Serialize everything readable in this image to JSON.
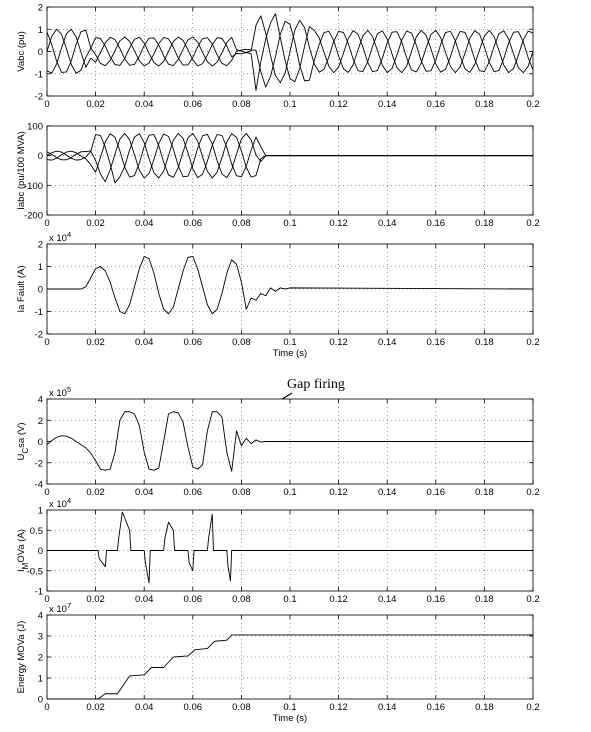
{
  "chart_data": [
    {
      "type": "line",
      "ylabel": "Vabc (pu)",
      "xlim": [
        0,
        0.2
      ],
      "xticks": [
        0,
        0.02,
        0.04,
        0.06,
        0.08,
        0.1,
        0.12,
        0.14,
        0.16,
        0.18,
        0.2
      ],
      "ylim": [
        -2,
        2
      ],
      "yticks": [
        -2,
        -1,
        0,
        1,
        2
      ],
      "grid": true,
      "x": [
        0,
        0.002,
        0.004,
        0.006,
        0.008,
        0.01,
        0.012,
        0.014,
        0.016,
        0.018,
        0.02,
        0.022,
        0.024,
        0.026,
        0.028,
        0.03,
        0.032,
        0.034,
        0.036,
        0.038,
        0.04,
        0.042,
        0.044,
        0.046,
        0.048,
        0.05,
        0.052,
        0.054,
        0.056,
        0.058,
        0.06,
        0.062,
        0.064,
        0.066,
        0.068,
        0.07,
        0.072,
        0.074,
        0.076,
        0.078,
        0.08,
        0.082,
        0.084,
        0.086,
        0.088,
        0.09,
        0.092,
        0.094,
        0.096,
        0.098,
        0.1,
        0.102,
        0.104,
        0.106,
        0.108,
        0.11,
        0.112,
        0.114,
        0.116,
        0.118,
        0.12,
        0.122,
        0.124,
        0.126,
        0.128,
        0.13,
        0.132,
        0.134,
        0.136,
        0.138,
        0.14,
        0.142,
        0.144,
        0.146,
        0.148,
        0.15,
        0.152,
        0.154,
        0.156,
        0.158,
        0.16,
        0.162,
        0.164,
        0.166,
        0.168,
        0.17,
        0.172,
        0.174,
        0.176,
        0.178,
        0.18,
        0.182,
        0.184,
        0.186,
        0.188,
        0.19,
        0.192,
        0.194,
        0.196,
        0.198,
        0.2
      ],
      "series": [
        {
          "color": "#000000",
          "values": [
            0,
            0.69,
            1.0,
            0.77,
            0.13,
            -0.59,
            -0.98,
            -0.84,
            -0.25,
            0.14,
            0.62,
            0.59,
            0.24,
            -0.24,
            -0.59,
            -0.62,
            -0.31,
            0.16,
            0.55,
            0.64,
            0.38,
            -0.08,
            -0.5,
            -0.65,
            -0.45,
            0,
            0.45,
            0.65,
            0.5,
            0.08,
            -0.38,
            -0.64,
            -0.55,
            -0.16,
            0.31,
            0.62,
            0.59,
            0.24,
            -0.24,
            -0.09,
            -0.1,
            -0.05,
            0.03,
            1.18,
            1.6,
            0.83,
            -0.18,
            -1.08,
            -1.4,
            -0.97,
            0,
            0.97,
            1.4,
            1.08,
            0.18,
            -0.56,
            -0.93,
            -0.8,
            -0.24,
            0.46,
            0.9,
            0.86,
            0.35,
            -0.35,
            -0.86,
            -0.9,
            -0.46,
            0.24,
            0.8,
            0.93,
            0.56,
            -0.12,
            -0.73,
            -0.95,
            -0.66,
            0,
            0.66,
            0.95,
            0.73,
            0.12,
            -0.56,
            -0.93,
            -0.8,
            -0.24,
            0.46,
            0.9,
            0.86,
            0.35,
            -0.35,
            -0.86,
            -0.9,
            -0.46,
            0.24,
            0.8,
            0.93,
            0.56,
            -0.12,
            -0.73,
            -0.95,
            -0.66,
            0
          ]
        },
        {
          "color": "#000000",
          "values": [
            -0.87,
            -0.97,
            -0.55,
            0.17,
            0.8,
            1.0,
            0.65,
            -0.04,
            -0.71,
            -0.3,
            -0.48,
            -0.05,
            0.4,
            0.64,
            0.53,
            0.14,
            -0.34,
            -0.62,
            -0.58,
            -0.21,
            0.27,
            0.6,
            0.61,
            0.29,
            -0.19,
            -0.57,
            -0.63,
            -0.36,
            0.11,
            0.52,
            0.65,
            0.42,
            -0.03,
            -0.46,
            -0.65,
            -0.48,
            -0.05,
            0.4,
            0.64,
            0.08,
            0.02,
            -0.05,
            -0.1,
            -1.75,
            -0.46,
            0.57,
            1.29,
            1.7,
            0.63,
            -0.41,
            -1.22,
            -1.36,
            -0.77,
            0.24,
            1.12,
            0.95,
            0.62,
            -0.04,
            -0.67,
            -0.95,
            -0.7,
            -0.08,
            0.59,
            0.94,
            0.78,
            0.2,
            -0.49,
            -0.91,
            -0.85,
            -0.31,
            0.39,
            0.87,
            0.89,
            0.43,
            -0.28,
            -0.83,
            -0.92,
            -0.52,
            0.16,
            0.76,
            0.95,
            0.62,
            -0.04,
            -0.67,
            -0.95,
            -0.7,
            -0.08,
            0.59,
            0.94,
            0.78,
            0.2,
            -0.49,
            -0.91,
            -0.85,
            -0.31,
            0.39,
            0.87,
            0.89,
            0.43,
            -0.28,
            -0.83
          ]
        },
        {
          "color": "#000000",
          "values": [
            0.87,
            0.29,
            -0.45,
            -0.94,
            -0.92,
            -0.41,
            0.33,
            0.89,
            0.96,
            0.16,
            -0.14,
            -0.53,
            -0.64,
            -0.4,
            0.05,
            0.48,
            0.65,
            0.46,
            0.03,
            -0.42,
            -0.65,
            -0.52,
            -0.11,
            0.36,
            0.63,
            0.57,
            0.19,
            -0.29,
            -0.61,
            -0.6,
            -0.27,
            0.21,
            0.58,
            0.62,
            0.34,
            -0.14,
            -0.53,
            -0.64,
            -0.4,
            0.01,
            0.07,
            0.1,
            0.07,
            0.06,
            -0.91,
            -1.6,
            -1.12,
            -0.24,
            0.77,
            1.36,
            1.22,
            0.41,
            -0.63,
            -1.32,
            -1.29,
            -0.39,
            0.31,
            0.85,
            0.91,
            0.49,
            -0.2,
            -0.78,
            -0.94,
            -0.59,
            0.08,
            0.7,
            0.95,
            0.67,
            0.04,
            -0.62,
            -0.95,
            -0.76,
            -0.16,
            0.52,
            0.92,
            0.83,
            0.28,
            -0.43,
            -0.89,
            -0.87,
            -0.39,
            0.31,
            0.85,
            0.91,
            0.49,
            -0.2,
            -0.78,
            -0.94,
            -0.59,
            0.08,
            0.7,
            0.95,
            0.67,
            0.04,
            -0.62,
            -0.95,
            -0.76,
            -0.16,
            0.52,
            0.92,
            0.83
          ]
        }
      ]
    },
    {
      "type": "line",
      "ylabel": "Iabc (pu/100 MVA)",
      "xlim": [
        0,
        0.2
      ],
      "xticks": [
        0,
        0.02,
        0.04,
        0.06,
        0.08,
        0.1,
        0.12,
        0.14,
        0.16,
        0.18,
        0.2
      ],
      "ylim": [
        -200,
        100
      ],
      "yticks": [
        -200,
        -100,
        0,
        100
      ],
      "grid": true,
      "x": [
        0,
        0.002,
        0.004,
        0.006,
        0.008,
        0.01,
        0.012,
        0.014,
        0.016,
        0.018,
        0.02,
        0.022,
        0.024,
        0.026,
        0.028,
        0.03,
        0.032,
        0.034,
        0.036,
        0.038,
        0.04,
        0.042,
        0.044,
        0.046,
        0.048,
        0.05,
        0.052,
        0.054,
        0.056,
        0.058,
        0.06,
        0.062,
        0.064,
        0.066,
        0.068,
        0.07,
        0.072,
        0.074,
        0.076,
        0.078,
        0.08,
        0.082,
        0.084,
        0.086,
        0.088,
        0.09,
        0.2
      ],
      "series": [
        {
          "color": "#000000",
          "values": [
            0,
            10,
            15,
            12,
            2,
            -9,
            -15,
            -13,
            -4,
            14,
            71,
            68,
            28,
            -28,
            -92,
            -71,
            -36,
            19,
            63,
            74,
            44,
            -10,
            -58,
            -75,
            -52,
            0,
            52,
            75,
            58,
            10,
            -44,
            -74,
            -63,
            -19,
            36,
            71,
            68,
            28,
            -28,
            -68,
            -71,
            -36,
            19,
            63,
            30,
            0,
            0
          ]
        },
        {
          "color": "#000000",
          "values": [
            -13,
            -15,
            -8,
            3,
            12,
            15,
            10,
            -1,
            -11,
            -30,
            -56,
            -6,
            47,
            74,
            62,
            16,
            -39,
            -72,
            -67,
            -25,
            31,
            69,
            71,
            34,
            -22,
            -65,
            -73,
            -41,
            13,
            60,
            75,
            49,
            -3,
            -53,
            -75,
            -56,
            -6,
            47,
            74,
            62,
            16,
            -39,
            -72,
            -67,
            -10,
            0,
            0
          ]
        },
        {
          "color": "#000000",
          "values": [
            13,
            4,
            -7,
            -14,
            -14,
            -6,
            5,
            13,
            14,
            16,
            -16,
            -62,
            -88,
            -47,
            6,
            56,
            75,
            53,
            3,
            -49,
            -75,
            -60,
            -13,
            41,
            73,
            65,
            22,
            -34,
            -71,
            -69,
            -31,
            25,
            67,
            72,
            39,
            -16,
            -62,
            -74,
            -47,
            6,
            56,
            75,
            53,
            3,
            -20,
            0,
            0
          ]
        }
      ]
    },
    {
      "type": "line",
      "ylabel": "Ia Fault (A)",
      "scale_base": "x 10",
      "scale_exp": "4",
      "xlabel": "Time (s)",
      "xlim": [
        0,
        0.2
      ],
      "xticks": [
        0,
        0.02,
        0.04,
        0.06,
        0.08,
        0.1,
        0.12,
        0.14,
        0.16,
        0.18,
        0.2
      ],
      "ylim": [
        -2,
        2
      ],
      "yticks": [
        -2,
        -1,
        0,
        1,
        2
      ],
      "grid": true,
      "x": [
        0,
        0.002,
        0.004,
        0.006,
        0.008,
        0.01,
        0.012,
        0.014,
        0.016,
        0.018,
        0.02,
        0.022,
        0.024,
        0.026,
        0.028,
        0.03,
        0.032,
        0.034,
        0.036,
        0.038,
        0.04,
        0.042,
        0.044,
        0.046,
        0.048,
        0.05,
        0.052,
        0.054,
        0.056,
        0.058,
        0.06,
        0.062,
        0.064,
        0.066,
        0.068,
        0.07,
        0.072,
        0.074,
        0.076,
        0.078,
        0.08,
        0.082,
        0.084,
        0.086,
        0.088,
        0.09,
        0.092,
        0.094,
        0.096,
        0.098,
        0.1,
        0.2
      ],
      "series": [
        {
          "color": "#000000",
          "values": [
            0,
            0,
            0,
            0,
            0,
            0,
            0,
            0,
            0.1,
            0.5,
            0.9,
            1.0,
            0.8,
            0.3,
            -0.4,
            -1.0,
            -1.1,
            -0.7,
            0.1,
            0.9,
            1.45,
            1.35,
            0.7,
            -0.2,
            -0.9,
            -1.1,
            -0.8,
            0,
            0.8,
            1.4,
            1.45,
            0.9,
            0.1,
            -0.7,
            -1.1,
            -0.9,
            -0.2,
            0.7,
            1.3,
            1.1,
            0.3,
            -0.9,
            -0.4,
            -0.5,
            -0.2,
            -0.3,
            0.05,
            -0.1,
            0.05,
            0,
            0.05,
            0
          ]
        }
      ]
    },
    {
      "type": "line",
      "ylabel": "U",
      "ylabel_sub": "C",
      "ylabel_rest": "sa (V)",
      "scale_base": "x 10",
      "scale_exp": "5",
      "annotation": "Gap firing",
      "xlim": [
        0,
        0.2
      ],
      "xticks": [
        0,
        0.02,
        0.04,
        0.06,
        0.08,
        0.1,
        0.12,
        0.14,
        0.16,
        0.18,
        0.2
      ],
      "ylim": [
        -4,
        4
      ],
      "yticks": [
        -4,
        -2,
        0,
        2,
        4
      ],
      "grid": true,
      "x": [
        0,
        0.002,
        0.004,
        0.006,
        0.008,
        0.01,
        0.012,
        0.014,
        0.016,
        0.018,
        0.02,
        0.022,
        0.024,
        0.026,
        0.028,
        0.03,
        0.032,
        0.034,
        0.036,
        0.038,
        0.04,
        0.042,
        0.044,
        0.046,
        0.048,
        0.05,
        0.052,
        0.054,
        0.056,
        0.058,
        0.06,
        0.062,
        0.064,
        0.066,
        0.068,
        0.07,
        0.072,
        0.074,
        0.076,
        0.078,
        0.08,
        0.082,
        0.084,
        0.086,
        0.088,
        0.09,
        0.2
      ],
      "series": [
        {
          "color": "#000000",
          "values": [
            -0.3,
            0.1,
            0.4,
            0.55,
            0.5,
            0.3,
            0,
            -0.3,
            -0.6,
            -1.1,
            -1.8,
            -2.6,
            -2.7,
            -2.6,
            -1.0,
            2.0,
            2.8,
            2.8,
            2.6,
            1.5,
            -1.0,
            -2.6,
            -2.7,
            -2.5,
            0,
            2.6,
            2.8,
            2.7,
            1.8,
            -0.5,
            -2.4,
            -2.6,
            -2.2,
            1.0,
            2.8,
            2.8,
            2.3,
            -1.0,
            -2.8,
            1.0,
            -0.4,
            0.3,
            -0.2,
            0.15,
            -0.05,
            0,
            0
          ]
        }
      ]
    },
    {
      "type": "line",
      "ylabel": "I",
      "ylabel_sub": "M",
      "ylabel_rest": "OVa (A)",
      "scale_base": "x 10",
      "scale_exp": "4",
      "xlim": [
        0,
        0.2
      ],
      "xticks": [
        0,
        0.02,
        0.04,
        0.06,
        0.08,
        0.1,
        0.12,
        0.14,
        0.16,
        0.18,
        0.2
      ],
      "ylim": [
        -1,
        1
      ],
      "yticks": [
        -1,
        -0.5,
        0,
        0.5,
        1
      ],
      "grid": true,
      "x": [
        0,
        0.021,
        0.0215,
        0.024,
        0.0245,
        0.029,
        0.0295,
        0.031,
        0.034,
        0.0345,
        0.04,
        0.0405,
        0.042,
        0.0425,
        0.048,
        0.0485,
        0.05,
        0.052,
        0.0525,
        0.058,
        0.0585,
        0.06,
        0.0605,
        0.066,
        0.0665,
        0.068,
        0.0685,
        0.074,
        0.0745,
        0.0755,
        0.076,
        0.2
      ],
      "series": [
        {
          "color": "#000000",
          "values": [
            0,
            0,
            -0.2,
            -0.4,
            0,
            0,
            0.3,
            0.95,
            0.5,
            0,
            0,
            -0.3,
            -0.8,
            0,
            0,
            0.3,
            0.7,
            0.5,
            0,
            0,
            -0.3,
            -0.5,
            0,
            0,
            0.3,
            0.9,
            0,
            0,
            -0.4,
            -0.75,
            0,
            0
          ]
        }
      ]
    },
    {
      "type": "line",
      "ylabel": "Energy MOVa (J)",
      "scale_base": "x 10",
      "scale_exp": "7",
      "xlabel": "Time (s)",
      "xlim": [
        0,
        0.2
      ],
      "xticks": [
        0,
        0.02,
        0.04,
        0.06,
        0.08,
        0.1,
        0.12,
        0.14,
        0.16,
        0.18,
        0.2
      ],
      "ylim": [
        0,
        4
      ],
      "yticks": [
        0,
        1,
        2,
        3,
        4
      ],
      "grid": true,
      "x": [
        0,
        0.021,
        0.024,
        0.029,
        0.034,
        0.04,
        0.043,
        0.048,
        0.052,
        0.058,
        0.061,
        0.066,
        0.069,
        0.074,
        0.076,
        0.2
      ],
      "series": [
        {
          "color": "#000000",
          "values": [
            0,
            0,
            0.25,
            0.25,
            1.1,
            1.15,
            1.5,
            1.5,
            2.0,
            2.05,
            2.35,
            2.4,
            2.75,
            2.8,
            3.05,
            3.05
          ]
        }
      ]
    }
  ]
}
